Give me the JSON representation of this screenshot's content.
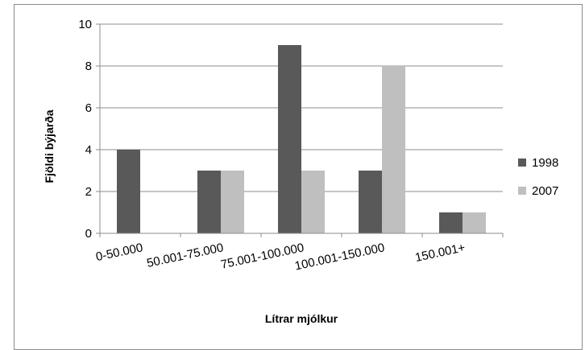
{
  "chart_data": {
    "type": "bar",
    "title": "",
    "xlabel": "Lítrar mjólkur",
    "ylabel": "Fjöldi býjarða",
    "categories": [
      "0-50.000",
      "50.001-75.000",
      "75.001-100.000",
      "100.001-150.000",
      "150.001+"
    ],
    "series": [
      {
        "name": "1998",
        "values": [
          4,
          3,
          9,
          3,
          1
        ],
        "color": "#595959"
      },
      {
        "name": "2007",
        "values": [
          0,
          3,
          3,
          8,
          1
        ],
        "color": "#bfbfbf"
      }
    ],
    "ylim": [
      0,
      10
    ],
    "yticks": [
      0,
      2,
      4,
      6,
      8,
      10
    ],
    "grid": true,
    "legend_position": "right"
  }
}
